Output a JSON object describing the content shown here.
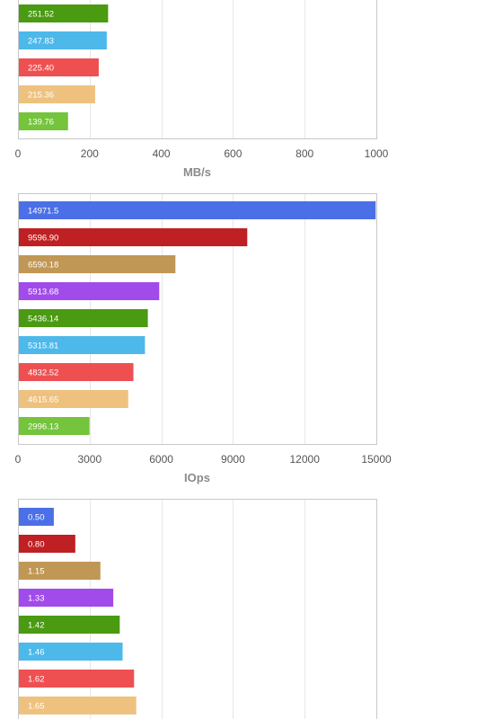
{
  "chart_data": [
    {
      "type": "bar",
      "orientation": "horizontal",
      "xlabel": "MB/s",
      "xlim": [
        0,
        1000
      ],
      "xticks": [
        "0",
        "200",
        "400",
        "600",
        "800",
        "1000"
      ],
      "grid": true,
      "bars": [
        {
          "label": "251.52",
          "value": 251.52,
          "color": "#4a9a12"
        },
        {
          "label": "247.83",
          "value": 247.83,
          "color": "#4db8ea"
        },
        {
          "label": "225.40",
          "value": 225.4,
          "color": "#ee5052"
        },
        {
          "label": "215.36",
          "value": 215.36,
          "color": "#eec27e"
        },
        {
          "label": "139.76",
          "value": 139.76,
          "color": "#74c43c"
        }
      ]
    },
    {
      "type": "bar",
      "orientation": "horizontal",
      "xlabel": "IOps",
      "xlim": [
        0,
        15000
      ],
      "xticks": [
        "0",
        "3000",
        "6000",
        "9000",
        "12000",
        "15000"
      ],
      "grid": true,
      "bars": [
        {
          "label": "14971.5",
          "value": 14971.5,
          "color": "#4a6fe6"
        },
        {
          "label": "9596.90",
          "value": 9596.9,
          "color": "#bf2024"
        },
        {
          "label": "6590.18",
          "value": 6590.18,
          "color": "#c19755"
        },
        {
          "label": "5913.68",
          "value": 5913.68,
          "color": "#a04bea"
        },
        {
          "label": "5436.14",
          "value": 5436.14,
          "color": "#4a9a12"
        },
        {
          "label": "5315.81",
          "value": 5315.81,
          "color": "#4db8ea"
        },
        {
          "label": "4832.52",
          "value": 4832.52,
          "color": "#ee5052"
        },
        {
          "label": "4615.65",
          "value": 4615.65,
          "color": "#eec27e"
        },
        {
          "label": "2996.13",
          "value": 2996.13,
          "color": "#74c43c"
        }
      ]
    },
    {
      "type": "bar",
      "orientation": "horizontal",
      "xlim": [
        0,
        5
      ],
      "grid": true,
      "bars": [
        {
          "label": "0.50",
          "value": 0.5,
          "color": "#4a6fe6"
        },
        {
          "label": "0.80",
          "value": 0.8,
          "color": "#bf2024"
        },
        {
          "label": "1.15",
          "value": 1.15,
          "color": "#c19755"
        },
        {
          "label": "1.33",
          "value": 1.33,
          "color": "#a04bea"
        },
        {
          "label": "1.42",
          "value": 1.42,
          "color": "#4a9a12"
        },
        {
          "label": "1.46",
          "value": 1.46,
          "color": "#4db8ea"
        },
        {
          "label": "1.62",
          "value": 1.62,
          "color": "#ee5052"
        },
        {
          "label": "1.65",
          "value": 1.65,
          "color": "#eec27e"
        }
      ]
    }
  ]
}
